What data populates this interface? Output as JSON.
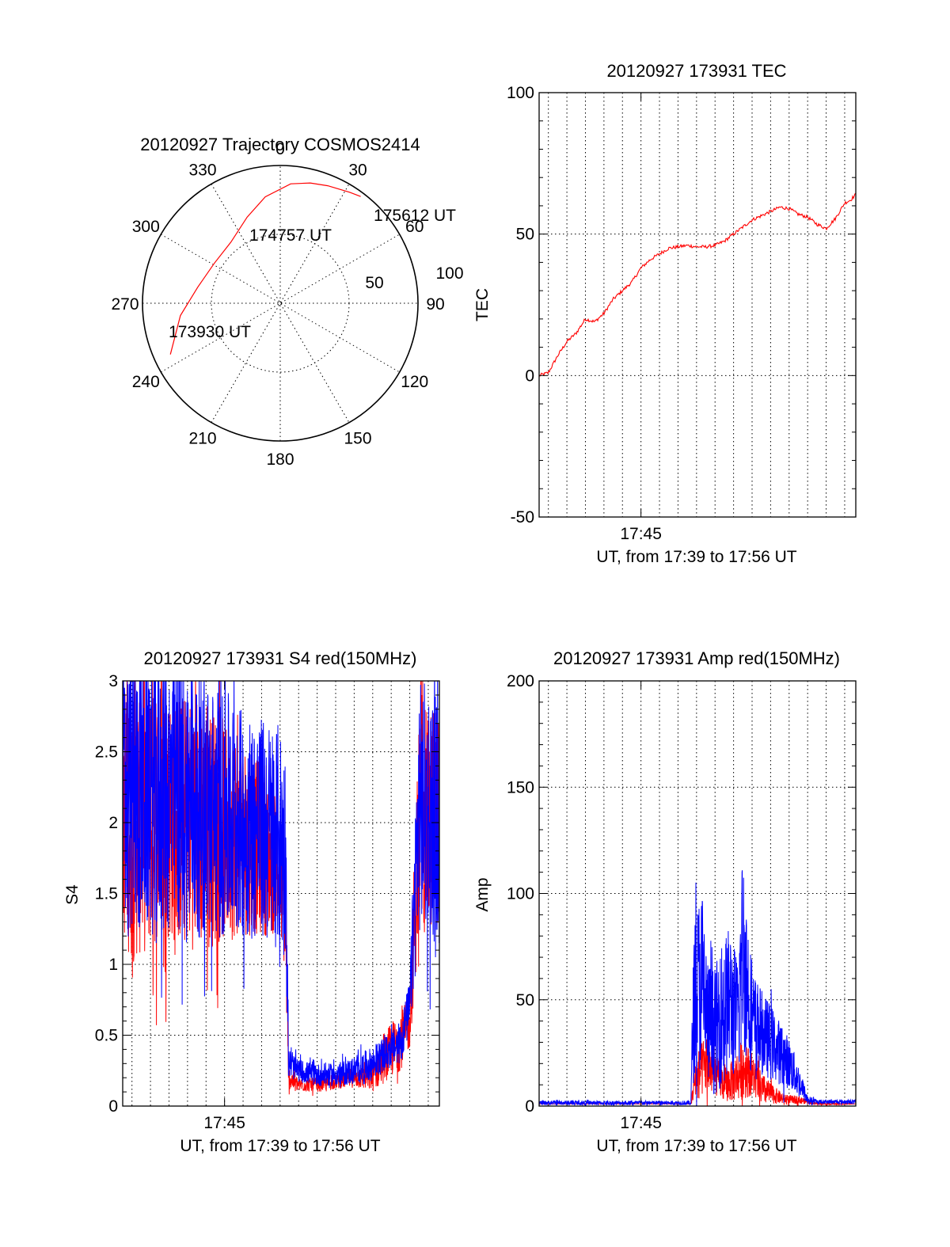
{
  "colors": {
    "red": "#ff0000",
    "blue": "#0000ff",
    "axis": "#000000"
  },
  "chart_data": [
    {
      "type": "polar",
      "title": "20120927 Trajectory COSMOS2414",
      "azimuth_labels": [
        "0",
        "30",
        "60",
        "90",
        "120",
        "150",
        "180",
        "210",
        "240",
        "270",
        "300",
        "330"
      ],
      "ring_labels": [
        "50",
        "100"
      ],
      "trajectory": {
        "color": "#ff0000",
        "points": [
          {
            "az": 245,
            "dist": 88
          },
          {
            "az": 263,
            "dist": 73
          },
          {
            "az": 281,
            "dist": 61
          },
          {
            "az": 301,
            "dist": 56
          },
          {
            "az": 321,
            "dist": 57
          },
          {
            "az": 339,
            "dist": 67
          },
          {
            "az": 352,
            "dist": 78
          },
          {
            "az": 5,
            "dist": 87
          },
          {
            "az": 14,
            "dist": 90
          },
          {
            "az": 22,
            "dist": 92
          },
          {
            "az": 32,
            "dist": 95
          },
          {
            "az": 37,
            "dist": 97
          }
        ],
        "labels": [
          "173930 UT",
          "174757 UT",
          "175612 UT"
        ]
      }
    },
    {
      "type": "line",
      "title": "20120927 173931 TEC",
      "xlabel": "UT, from 17:39 to 17:56 UT",
      "ylabel": "TEC",
      "xlim": [
        39.5,
        56.6
      ],
      "ylim": [
        -50,
        100
      ],
      "yticks": [
        -50,
        0,
        50,
        100
      ],
      "xticks": [
        {
          "v": 45,
          "label": "17:45"
        }
      ],
      "series": [
        {
          "color": "#ff0000",
          "x": [
            39.5,
            40.0,
            40.5,
            41.0,
            41.5,
            42.0,
            42.5,
            43.0,
            43.5,
            44.0,
            44.5,
            45.0,
            45.5,
            46.0,
            46.5,
            47.0,
            47.5,
            48.0,
            48.5,
            49.0,
            49.5,
            50.0,
            50.5,
            51.0,
            51.5,
            52.0,
            52.5,
            53.0,
            53.5,
            54.0,
            54.5,
            55.0,
            55.5,
            56.0,
            56.3,
            56.6
          ],
          "y": [
            0,
            1,
            7,
            12,
            15,
            20,
            19,
            22,
            27,
            30,
            33,
            38,
            41,
            43,
            45,
            45.5,
            46,
            45.5,
            45.5,
            46,
            47.5,
            50,
            52.5,
            55,
            56.5,
            58,
            59.5,
            59,
            57,
            56,
            53.5,
            52,
            55.5,
            61,
            62,
            64
          ]
        }
      ]
    },
    {
      "type": "line",
      "title": "20120927 173931 S4 red(150MHz)",
      "xlabel": "UT, from 17:39 to 17:56 UT",
      "ylabel": "S4",
      "xlim": [
        39.5,
        56.6
      ],
      "ylim": [
        0,
        3
      ],
      "yticks": [
        0,
        0.5,
        1,
        1.5,
        2,
        2.5,
        3
      ],
      "ytick_labels": [
        "0",
        "0.5",
        "1",
        "1.5",
        "2",
        "2.5",
        "3"
      ],
      "xticks": [
        {
          "v": 45,
          "label": "17:45"
        }
      ],
      "series": [
        {
          "color": "#ff0000",
          "x": [
            39.5,
            40.0,
            41.0,
            42.0,
            43.0,
            44.0,
            45.0,
            46.0,
            47.0,
            48.0,
            48.3,
            48.45,
            49.0,
            50.0,
            51.0,
            52.0,
            53.0,
            53.5,
            54.0,
            54.5,
            55.0,
            55.5,
            56.0,
            56.6
          ],
          "y": [
            2.2,
            2.0,
            2.1,
            2.05,
            2.0,
            2.0,
            1.95,
            1.9,
            1.8,
            1.6,
            1.2,
            0.2,
            0.15,
            0.15,
            0.17,
            0.2,
            0.2,
            0.3,
            0.4,
            0.45,
            0.6,
            2.0,
            2.0,
            2.1
          ],
          "noise": [
            1.0,
            1.0,
            1.0,
            0.9,
            0.9,
            0.9,
            0.8,
            0.7,
            0.6,
            0.4,
            0.3,
            0.08,
            0.05,
            0.05,
            0.05,
            0.07,
            0.1,
            0.15,
            0.2,
            0.2,
            0.2,
            0.8,
            0.8,
            0.8
          ]
        },
        {
          "color": "#0000ff",
          "x": [
            39.5,
            40.0,
            41.0,
            42.0,
            43.0,
            44.0,
            45.0,
            46.0,
            47.0,
            48.0,
            48.3,
            48.45,
            49.0,
            50.0,
            51.0,
            52.0,
            53.0,
            53.5,
            54.0,
            54.5,
            55.0,
            55.5,
            56.0,
            56.6
          ],
          "y": [
            2.2,
            2.2,
            2.2,
            2.2,
            2.15,
            2.1,
            2.05,
            2.0,
            1.95,
            1.9,
            1.8,
            0.3,
            0.25,
            0.22,
            0.22,
            0.25,
            0.3,
            0.35,
            0.4,
            0.45,
            0.7,
            2.1,
            2.1,
            2.0
          ],
          "noise": [
            1.0,
            1.0,
            1.0,
            1.0,
            1.0,
            0.9,
            0.9,
            0.8,
            0.8,
            0.8,
            0.7,
            0.1,
            0.08,
            0.08,
            0.08,
            0.1,
            0.12,
            0.12,
            0.12,
            0.15,
            0.2,
            0.9,
            0.9,
            0.9
          ]
        }
      ]
    },
    {
      "type": "line",
      "title": "20120927 173931 Amp red(150MHz)",
      "xlabel": "UT, from 17:39 to 17:56 UT",
      "ylabel": "Amp",
      "xlim": [
        39.5,
        56.6
      ],
      "ylim": [
        0,
        200
      ],
      "yticks": [
        0,
        50,
        100,
        150,
        200
      ],
      "xticks": [
        {
          "v": 45,
          "label": "17:45"
        }
      ],
      "series": [
        {
          "color": "#ff0000",
          "x": [
            39.5,
            45.0,
            47.7,
            47.9,
            48.5,
            49.0,
            49.5,
            50.0,
            50.5,
            51.0,
            51.5,
            52.0,
            52.5,
            53.0,
            53.5,
            54.0,
            54.5,
            55.0,
            56.6
          ],
          "y": [
            1,
            1,
            1,
            12,
            20,
            15,
            10,
            12,
            18,
            15,
            8,
            6,
            4,
            3,
            3,
            2,
            1,
            1,
            1
          ],
          "noise": [
            0,
            0,
            0,
            10,
            15,
            10,
            8,
            10,
            15,
            10,
            8,
            5,
            3,
            2,
            2,
            1,
            0.5,
            0.5,
            0
          ]
        },
        {
          "color": "#0000ff",
          "x": [
            39.5,
            45.0,
            47.7,
            47.8,
            48.0,
            48.3,
            48.6,
            49.0,
            49.4,
            49.8,
            50.2,
            50.5,
            51.0,
            51.5,
            52.0,
            52.5,
            53.0,
            53.5,
            54.0,
            54.5,
            55.0,
            56.6
          ],
          "y": [
            1.5,
            1.5,
            1.5,
            40,
            55,
            60,
            40,
            35,
            45,
            50,
            40,
            75,
            40,
            35,
            30,
            25,
            20,
            12,
            3,
            2,
            2,
            2
          ],
          "noise": [
            1,
            1,
            1,
            30,
            40,
            45,
            30,
            30,
            35,
            35,
            30,
            50,
            25,
            20,
            18,
            15,
            12,
            8,
            2,
            1,
            1,
            1
          ]
        }
      ]
    }
  ]
}
